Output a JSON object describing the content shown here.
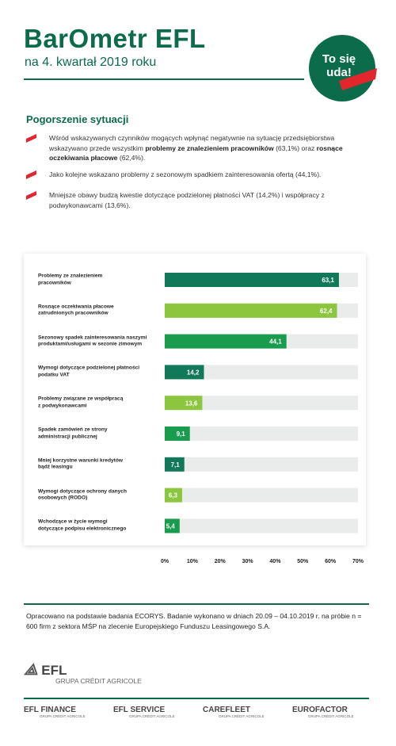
{
  "header": {
    "title": "BarOmetr EFL",
    "subtitle": "na 4. kwartał 2019 roku",
    "badge": [
      "To się",
      "uda!"
    ]
  },
  "section_title": "Pogorszenie sytuacji",
  "bullets": [
    [
      "Wśród wskazywanych czynników mogących wpłynąć negatywnie na sytuację przedsiębiorstwa wskazywano przede wszystkim ",
      "problemy ze znalezieniem pracowników",
      " (63,1%) oraz ",
      "rosnące oczekiwania płacowe",
      " (62,4%)."
    ],
    [
      "Jako kolejne wskazano problemy z sezonowym spadkiem zainteresowania ofertą (44,1%)."
    ],
    [
      "Mniejsze obawy budzą kwestie dotyczące podzielonej płatności VAT (14,2%) i współpracy z podwykonawcami (13,6%)."
    ]
  ],
  "chart_data": {
    "type": "hbar",
    "categories": [
      "Problemy ze znalezieniem\npracowników",
      "Rosnące oczekiwania płacowe\nzatrudnionych pracowników",
      "Sezonowy spadek zainteresowania naszymi\nproduktami/usługami w sezonie zimowym",
      "Wymogi dotyczące podzielonej płatności\npodatku VAT",
      "Problemy związane ze współpracą\nz podwykonawcami",
      "Spadek zamówień ze strony\nadministracji publicznej",
      "Mniej korzystne warunki kredytów\nbądź leasingu",
      "Wymogi dotyczące ochrony danych\nosobowych (RODO)",
      "Wchodzące w życie wymogi\ndotyczące podpisu elektronicznego"
    ],
    "values": [
      63.1,
      62.4,
      44.1,
      14.2,
      13.6,
      9.1,
      7.1,
      6.3,
      5.4
    ],
    "value_labels": [
      "63,1",
      "62,4",
      "44,1",
      "14,2",
      "13,6",
      "9,1",
      "7,1",
      "6,3",
      "5,4"
    ],
    "colors": [
      "#12785a",
      "#8cc63f",
      "#1a9c4f",
      "#12785a",
      "#8cc63f",
      "#1a9c4f",
      "#12785a",
      "#8cc63f",
      "#1a9c4f"
    ],
    "xlim": [
      0,
      70
    ],
    "xticks": [
      {
        "value": 0,
        "label": "0%"
      },
      {
        "value": 10,
        "label": "10%"
      },
      {
        "value": 20,
        "label": "20%"
      },
      {
        "value": 30,
        "label": "30%"
      },
      {
        "value": 40,
        "label": "40%"
      },
      {
        "value": 50,
        "label": "50%"
      },
      {
        "value": 60,
        "label": "60%"
      },
      {
        "value": 70,
        "label": "70%"
      }
    ]
  },
  "footnote": "Opracowano na podstawie badania ECORYS. Badanie wykonano w dniach 20.09 – 04.10.2019 r. na próbie n = 600 firm z sektora MŚP na zlecenie Europejskiego Funduszu Leasingowego S.A.",
  "brand": {
    "name": "EFL",
    "group": "GRUPA CRÉDIT AGRICOLE"
  },
  "partners": [
    {
      "name": "EFL FINANCE",
      "group": "GRUPA CRÉDIT AGRICOLE"
    },
    {
      "name": "EFL SERVICE",
      "group": "GRUPA CRÉDIT AGRICOLE"
    },
    {
      "name": "CAREFLEET",
      "group": "GRUPA CRÉDIT AGRICOLE"
    },
    {
      "name": "EUROFACTOR",
      "group": "GRUPA CRÉDIT AGRICOLE"
    }
  ]
}
